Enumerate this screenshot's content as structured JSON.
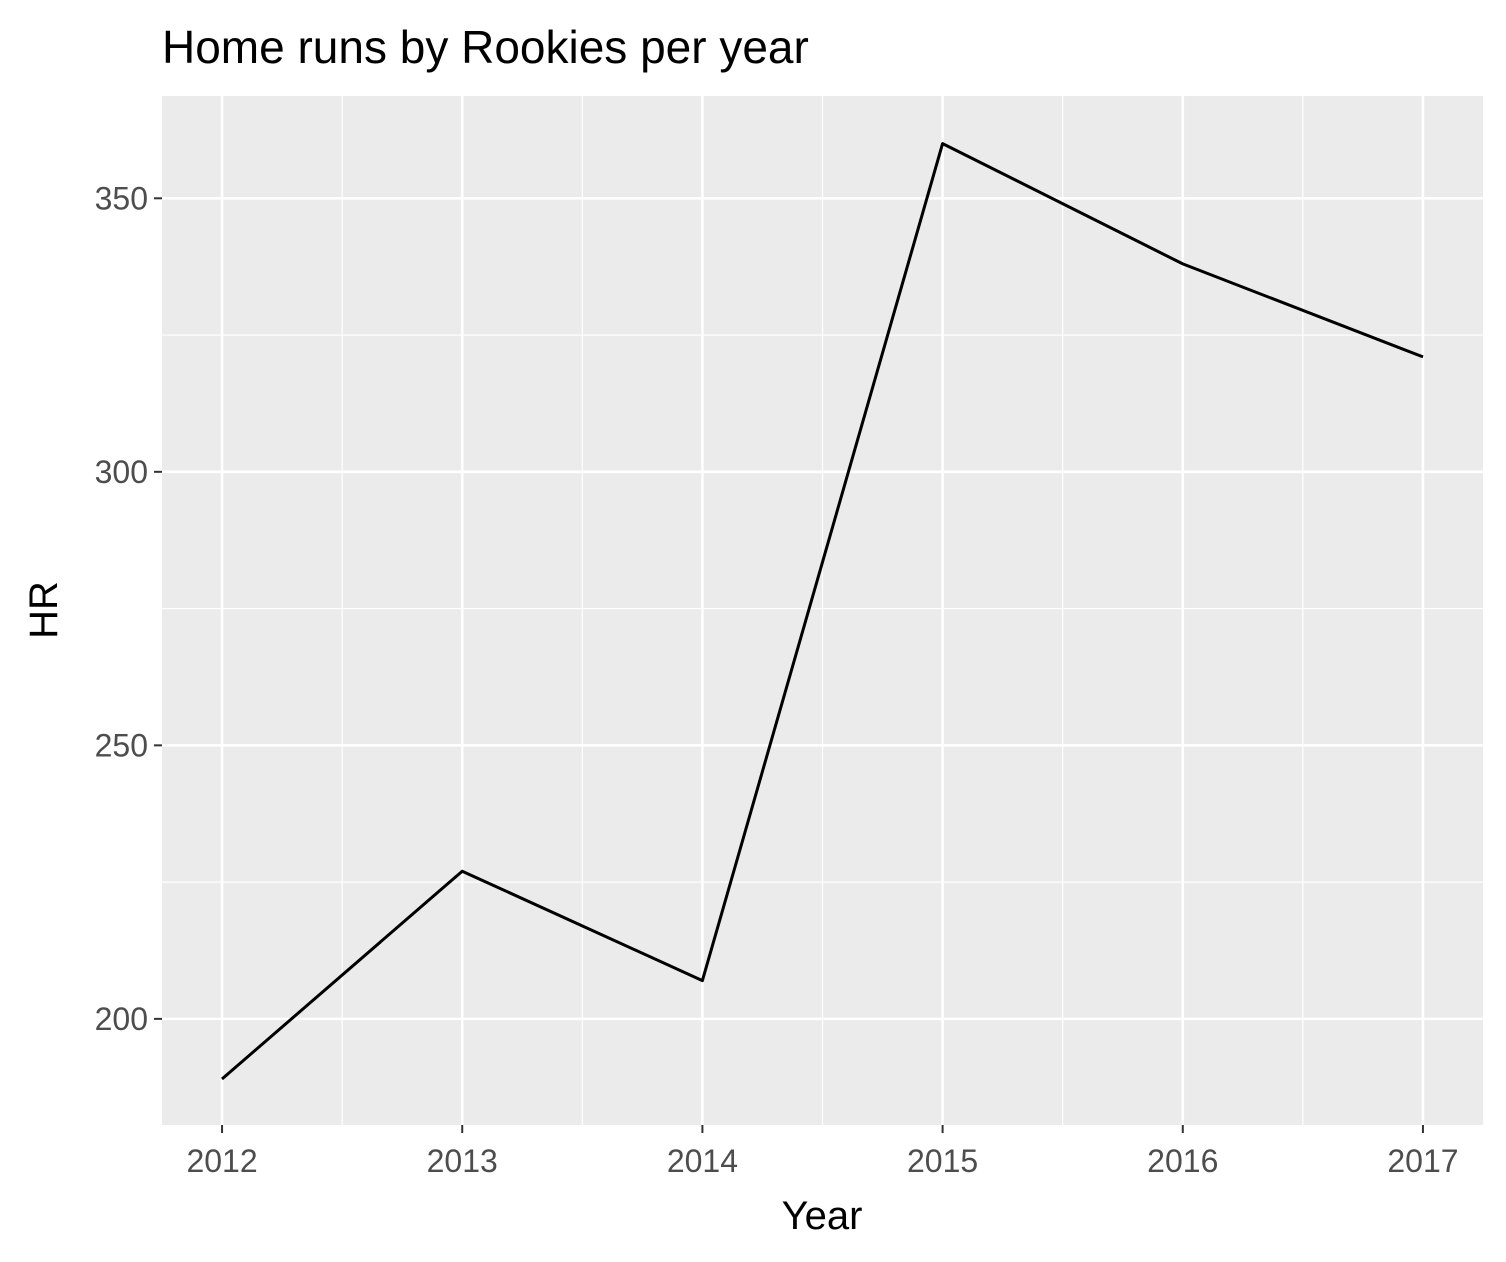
{
  "chart_data": {
    "type": "line",
    "title": "Home runs by Rookies per year",
    "xlabel": "Year",
    "ylabel": "HR",
    "x": [
      2012,
      2013,
      2014,
      2015,
      2016,
      2017
    ],
    "series": [
      {
        "values": [
          189,
          227,
          207,
          360,
          338,
          321
        ]
      }
    ],
    "xticks": [
      "2012",
      "2013",
      "2014",
      "2015",
      "2016",
      "2017"
    ],
    "yticks": [
      200,
      250,
      300,
      350
    ],
    "xlim": [
      2011.75,
      2017.25
    ],
    "ylim": [
      180.6,
      368.7
    ],
    "grid": true,
    "legend": "none",
    "colors": {
      "panel": "#ebebeb",
      "grid": "#ffffff",
      "line": "#000000",
      "tick_text": "#4d4d4d",
      "tick_mark": "#333333"
    }
  }
}
